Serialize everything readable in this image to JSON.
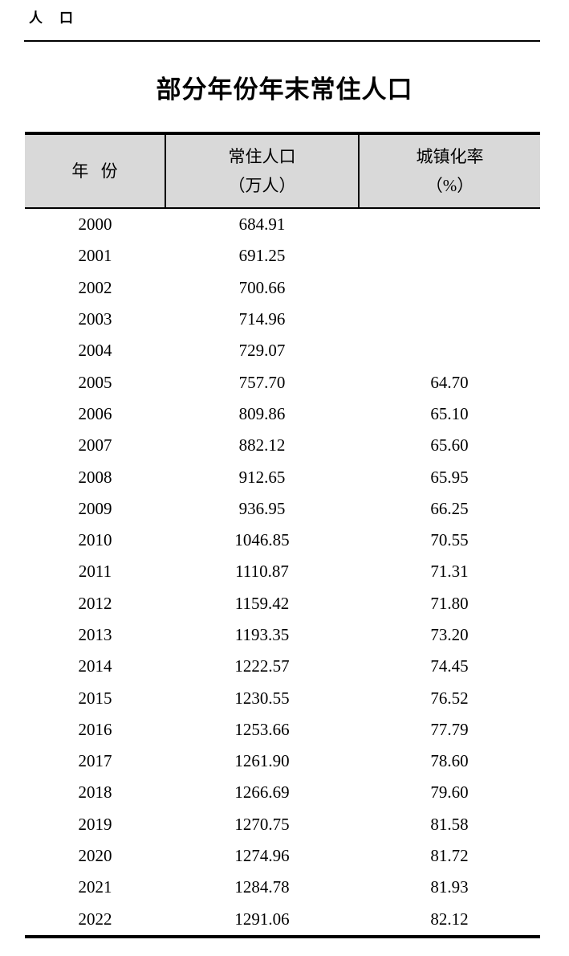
{
  "section_header": "人　口",
  "title": "部分年份年末常住人口",
  "table": {
    "header": {
      "col1": "年 份",
      "col2_line1": "常住人口",
      "col2_line2": "（万人）",
      "col3_line1": "城镇化率",
      "col3_line2": "（%）"
    },
    "rows": [
      [
        "2000",
        "684.91",
        ""
      ],
      [
        "2001",
        "691.25",
        ""
      ],
      [
        "2002",
        "700.66",
        ""
      ],
      [
        "2003",
        "714.96",
        ""
      ],
      [
        "2004",
        "729.07",
        ""
      ],
      [
        "2005",
        "757.70",
        "64.70"
      ],
      [
        "2006",
        "809.86",
        "65.10"
      ],
      [
        "2007",
        "882.12",
        "65.60"
      ],
      [
        "2008",
        "912.65",
        "65.95"
      ],
      [
        "2009",
        "936.95",
        "66.25"
      ],
      [
        "2010",
        "1046.85",
        "70.55"
      ],
      [
        "2011",
        "1110.87",
        "71.31"
      ],
      [
        "2012",
        "1159.42",
        "71.80"
      ],
      [
        "2013",
        "1193.35",
        "73.20"
      ],
      [
        "2014",
        "1222.57",
        "74.45"
      ],
      [
        "2015",
        "1230.55",
        "76.52"
      ],
      [
        "2016",
        "1253.66",
        "77.79"
      ],
      [
        "2017",
        "1261.90",
        "78.60"
      ],
      [
        "2018",
        "1266.69",
        "79.60"
      ],
      [
        "2019",
        "1270.75",
        "81.58"
      ],
      [
        "2020",
        "1274.96",
        "81.72"
      ],
      [
        "2021",
        "1284.78",
        "81.93"
      ],
      [
        "2022",
        "1291.06",
        "82.12"
      ]
    ]
  },
  "colors": {
    "header_bg": "#d9d9d9",
    "border": "#000000",
    "text": "#000000"
  }
}
